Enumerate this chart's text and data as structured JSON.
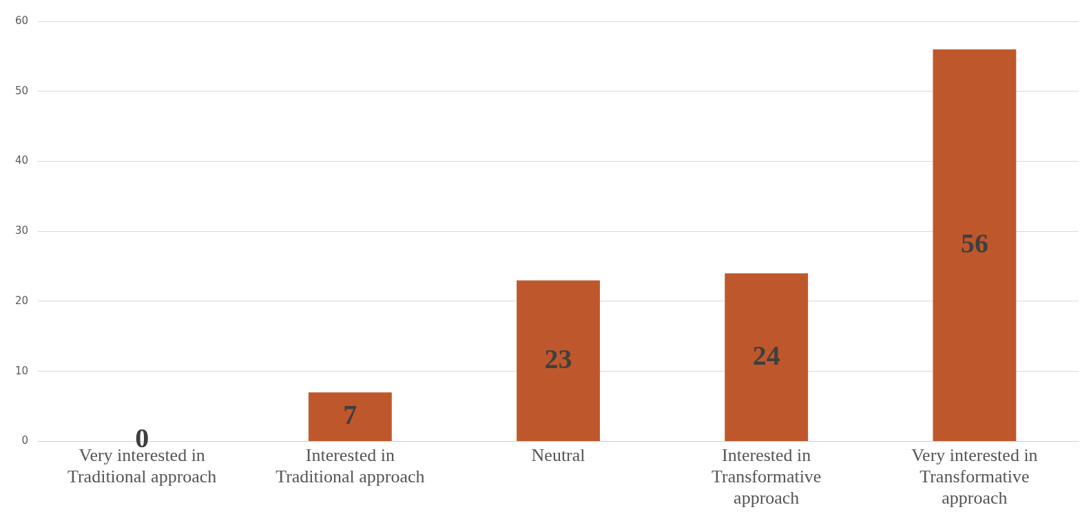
{
  "chart_data": {
    "type": "bar",
    "categories": [
      "Very interested in Traditional approach",
      "Interested in Traditional approach",
      "Neutral",
      "Interested in Transformative approach",
      "Very interested in Transformative approach"
    ],
    "values": [
      0,
      7,
      23,
      24,
      56
    ],
    "color": "#be582c",
    "ylim": [
      0,
      60
    ],
    "yticks": [
      0,
      10,
      20,
      30,
      40,
      50,
      60
    ],
    "grid": "y",
    "data_labels": true
  }
}
